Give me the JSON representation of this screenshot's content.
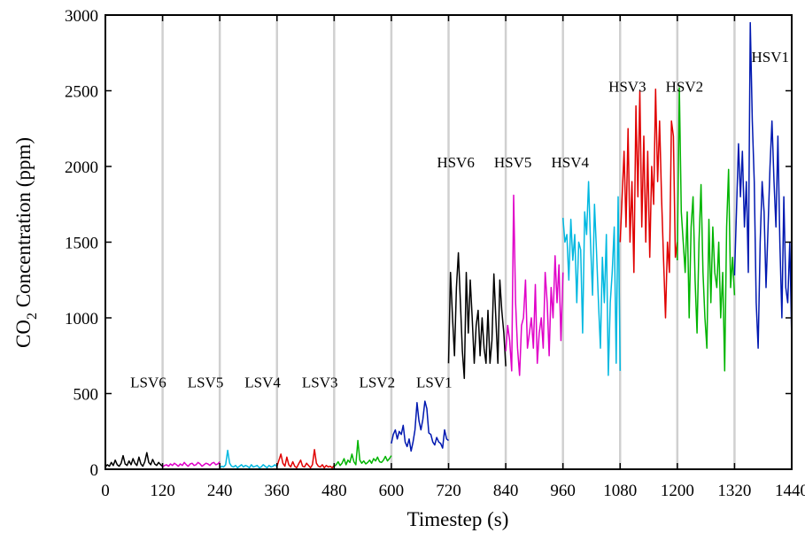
{
  "chart_data": {
    "type": "line",
    "xlabel": "Timestep (s)",
    "ylabel_main": "CO",
    "ylabel_sub": "2",
    "ylabel_rest": " Concentration (ppm)",
    "xlim": [
      0,
      1440
    ],
    "ylim": [
      0,
      3000
    ],
    "xticks": [
      0,
      120,
      240,
      360,
      480,
      600,
      720,
      840,
      960,
      1080,
      1200,
      1320,
      1440
    ],
    "yticks": [
      0,
      500,
      1000,
      1500,
      2000,
      2500,
      3000
    ],
    "grid": "vertical",
    "series": [
      {
        "label": "LSV6",
        "label_pos": [
          90,
          540
        ],
        "color": "#000000",
        "x_range": [
          0,
          120
        ],
        "values": [
          15,
          30,
          20,
          45,
          25,
          60,
          30,
          20,
          40,
          90,
          35,
          25,
          55,
          30,
          70,
          40,
          25,
          80,
          35,
          20,
          50,
          110,
          45,
          30,
          65,
          35,
          25,
          45,
          30,
          20
        ]
      },
      {
        "label": "LSV5",
        "label_pos": [
          210,
          540
        ],
        "color": "#e000c8",
        "x_range": [
          120,
          240
        ],
        "values": [
          15,
          25,
          30,
          20,
          35,
          25,
          40,
          30,
          20,
          35,
          25,
          45,
          30,
          20,
          35,
          40,
          25,
          30,
          45,
          35,
          20,
          30,
          40,
          35,
          25,
          40,
          45,
          30,
          35,
          50
        ]
      },
      {
        "label": "LSV4",
        "label_pos": [
          330,
          540
        ],
        "color": "#00b8e0",
        "x_range": [
          240,
          360
        ],
        "values": [
          10,
          20,
          15,
          30,
          125,
          40,
          20,
          15,
          25,
          10,
          20,
          30,
          15,
          25,
          20,
          10,
          30,
          15,
          20,
          25,
          10,
          15,
          30,
          20,
          10,
          25,
          15,
          20,
          30,
          15
        ]
      },
      {
        "label": "LSV3",
        "label_pos": [
          450,
          540
        ],
        "color": "#e00000",
        "x_range": [
          360,
          480
        ],
        "values": [
          20,
          60,
          100,
          40,
          20,
          80,
          30,
          15,
          50,
          20,
          10,
          35,
          60,
          20,
          15,
          40,
          25,
          10,
          30,
          130,
          40,
          20,
          15,
          30,
          10,
          25,
          15,
          20,
          10,
          25
        ]
      },
      {
        "label": "LSV2",
        "label_pos": [
          570,
          540
        ],
        "color": "#00b400",
        "x_range": [
          480,
          600
        ],
        "values": [
          20,
          30,
          50,
          25,
          40,
          70,
          30,
          60,
          45,
          100,
          50,
          30,
          190,
          60,
          40,
          55,
          35,
          45,
          60,
          40,
          70,
          55,
          80,
          50,
          45,
          60,
          85,
          55,
          70,
          90
        ]
      },
      {
        "label": "LSV1",
        "label_pos": [
          690,
          540
        ],
        "color": "#0018b0",
        "x_range": [
          600,
          720
        ],
        "values": [
          170,
          230,
          260,
          200,
          250,
          230,
          290,
          180,
          150,
          200,
          120,
          180,
          260,
          440,
          320,
          260,
          330,
          450,
          400,
          240,
          230,
          180,
          160,
          210,
          180,
          170,
          140,
          260,
          200,
          190
        ]
      },
      {
        "label": "HSV6",
        "label_pos": [
          735,
          1995
        ],
        "color": "#000000",
        "x_range": [
          720,
          840
        ],
        "values": [
          700,
          1300,
          1000,
          750,
          1200,
          1430,
          1100,
          780,
          600,
          1300,
          900,
          1250,
          1000,
          700,
          950,
          1050,
          750,
          1000,
          800,
          700,
          1050,
          700,
          850,
          1290,
          1000,
          700,
          1250,
          1050,
          900,
          680
        ]
      },
      {
        "label": "HSV5",
        "label_pos": [
          855,
          1995
        ],
        "color": "#e000c8",
        "x_range": [
          840,
          960
        ],
        "values": [
          780,
          950,
          850,
          650,
          1810,
          1100,
          800,
          620,
          950,
          1000,
          1250,
          800,
          900,
          1000,
          800,
          1220,
          700,
          900,
          1000,
          800,
          1300,
          1100,
          750,
          1200,
          1000,
          1410,
          1100,
          1350,
          850,
          1300
        ]
      },
      {
        "label": "HSV4",
        "label_pos": [
          975,
          1995
        ],
        "color": "#00b8e0",
        "x_range": [
          960,
          1080
        ],
        "values": [
          1660,
          1500,
          1550,
          1250,
          1650,
          1380,
          1550,
          1100,
          1500,
          1450,
          900,
          1700,
          1550,
          1900,
          1500,
          1150,
          1750,
          1450,
          1100,
          800,
          1400,
          1100,
          1550,
          620,
          1100,
          1300,
          1600,
          700,
          1800,
          650
        ]
      },
      {
        "label": "HSV3",
        "label_pos": [
          1095,
          2495
        ],
        "color": "#e00000",
        "x_range": [
          1080,
          1200
        ],
        "values": [
          1500,
          1800,
          2100,
          1600,
          2250,
          1500,
          1900,
          1300,
          2400,
          1800,
          2500,
          1600,
          2200,
          1500,
          2100,
          1400,
          2000,
          1750,
          2510,
          1900,
          2300,
          1800,
          1400,
          1000,
          1500,
          1300,
          2300,
          2200,
          1400,
          1500
        ]
      },
      {
        "label": "HSV2",
        "label_pos": [
          1215,
          2495
        ],
        "color": "#00b400",
        "x_range": [
          1200,
          1320
        ],
        "values": [
          1380,
          2520,
          1700,
          1500,
          1300,
          1700,
          1000,
          1600,
          1800,
          1250,
          900,
          1500,
          1880,
          1300,
          1000,
          800,
          1650,
          1100,
          1600,
          1300,
          1200,
          1500,
          1000,
          1300,
          650,
          1600,
          1980,
          1200,
          1400,
          1150
        ]
      },
      {
        "label": "HSV1",
        "label_pos": [
          1395,
          2690
        ],
        "color": "#0018b0",
        "x_range": [
          1320,
          1440
        ],
        "values": [
          1280,
          1700,
          2150,
          1800,
          2100,
          1600,
          1900,
          1300,
          2950,
          2300,
          1900,
          1100,
          800,
          1500,
          1900,
          1700,
          1200,
          1600,
          2000,
          2300,
          1900,
          1600,
          2200,
          1500,
          1000,
          1800,
          1200,
          1100,
          1500,
          850
        ]
      }
    ]
  }
}
